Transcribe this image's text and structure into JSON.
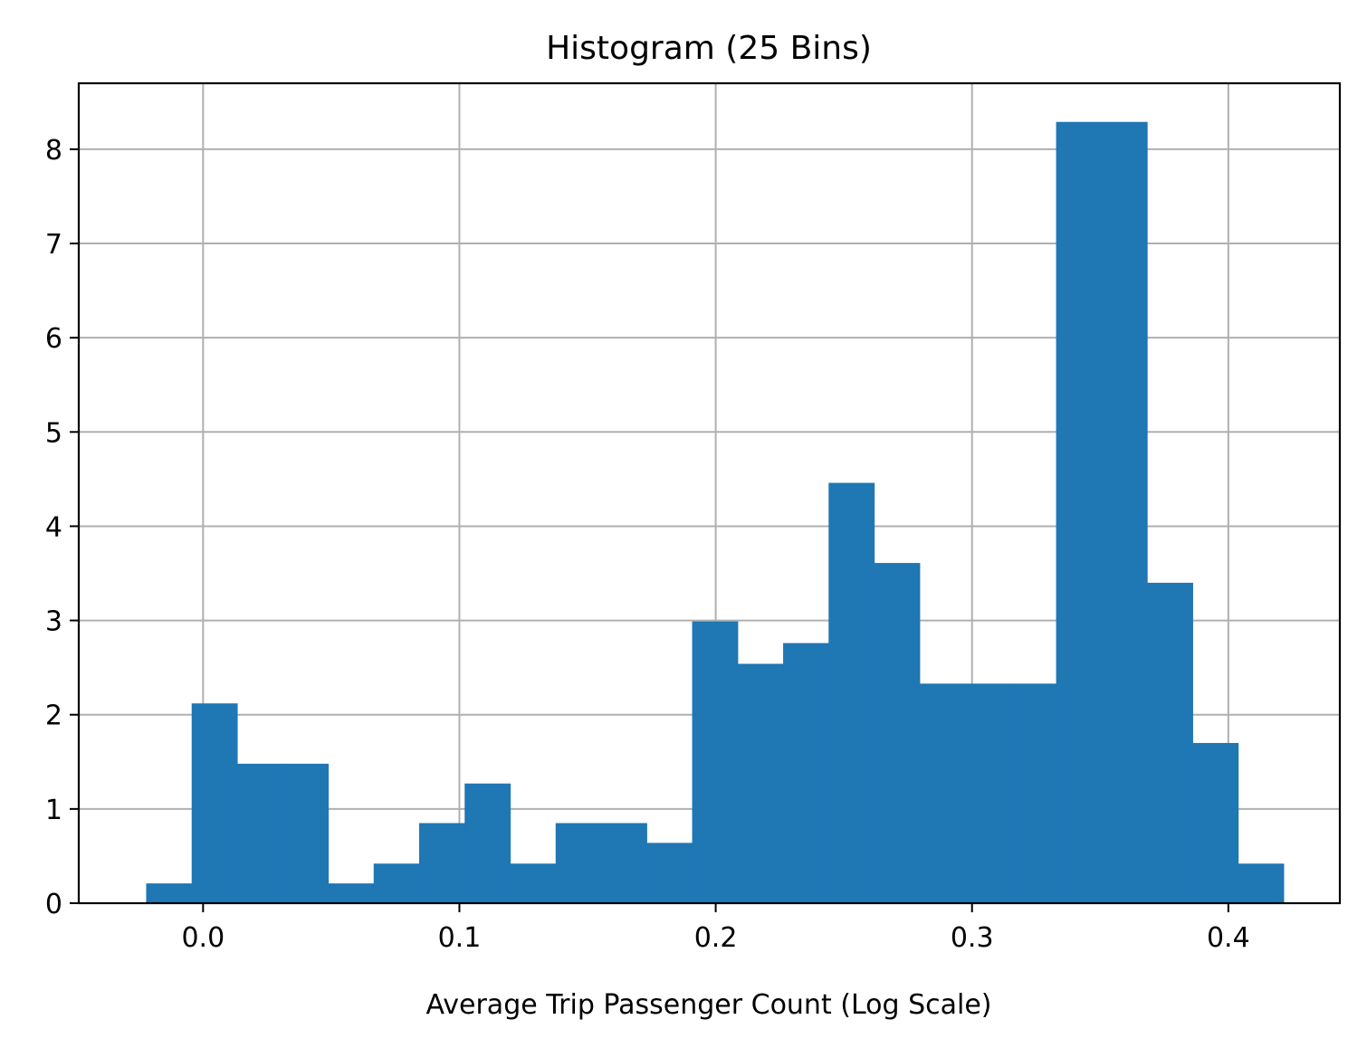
{
  "chart_data": {
    "type": "bar",
    "title": "Histogram (25 Bins)",
    "xlabel": "Average Trip Passenger Count (Log Scale)",
    "ylabel": "",
    "xlim": [
      -0.0485,
      0.4435
    ],
    "ylim": [
      0,
      8.7
    ],
    "grid": true,
    "bar_color": "#1f77b4",
    "grid_color": "#b0b0b0",
    "x_ticks": [
      0.0,
      0.1,
      0.2,
      0.3,
      0.4
    ],
    "x_tick_labels": [
      "0.0",
      "0.1",
      "0.2",
      "0.3",
      "0.4"
    ],
    "y_ticks": [
      0,
      1,
      2,
      3,
      4,
      5,
      6,
      7,
      8
    ],
    "y_tick_labels": [
      "0",
      "1",
      "2",
      "3",
      "4",
      "5",
      "6",
      "7",
      "8"
    ],
    "bin_start": -0.0222,
    "bin_width": 0.01775,
    "values": [
      0.21,
      2.12,
      1.48,
      1.48,
      0.21,
      0.42,
      0.85,
      1.27,
      0.42,
      0.85,
      0.85,
      0.64,
      2.99,
      2.54,
      2.76,
      4.46,
      3.61,
      2.33,
      2.33,
      2.33,
      8.29,
      8.29,
      3.4,
      1.7,
      0.42
    ]
  }
}
